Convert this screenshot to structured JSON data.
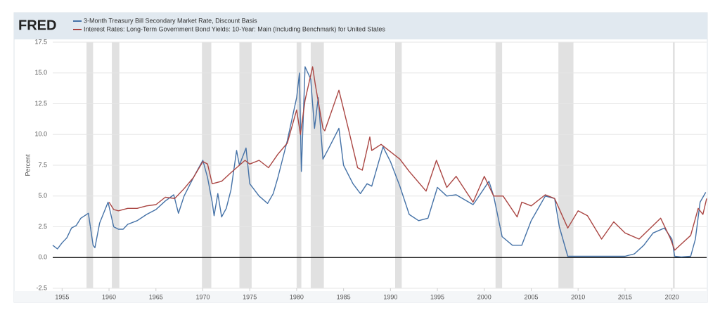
{
  "logo_text": "FRED",
  "chart_data": {
    "type": "line",
    "y_label": "Percent",
    "xlim": [
      1954,
      2023.7
    ],
    "xticks": [
      1955,
      1960,
      1965,
      1970,
      1975,
      1980,
      1985,
      1990,
      1995,
      2000,
      2005,
      2010,
      2015,
      2020
    ],
    "ylim": [
      -2.5,
      17.5
    ],
    "yticks": [
      -2.5,
      {
        "value": 0,
        "label": "0.0"
      },
      2.5,
      {
        "value": 5,
        "label": "5.0"
      },
      7.5,
      {
        "value": 10,
        "label": "10.0"
      },
      12.5,
      {
        "value": 15,
        "label": "15.0"
      },
      17.5
    ],
    "grid": true,
    "recession_color": "#e1e1e1",
    "recessions": [
      [
        1957.6,
        1958.3
      ],
      [
        1960.3,
        1961.1
      ],
      [
        1969.9,
        1970.9
      ],
      [
        1973.9,
        1975.2
      ],
      [
        1980.0,
        1980.5
      ],
      [
        1981.5,
        1982.9
      ],
      [
        1990.5,
        1991.2
      ],
      [
        2001.2,
        2001.9
      ],
      [
        2007.9,
        2009.5
      ],
      [
        2020.1,
        2020.3
      ]
    ],
    "series": [
      {
        "name": "3-Month Treasury Bill Secondary Market Rate, Discount Basis",
        "color": "#4572a7",
        "x": [
          1954.0,
          1954.5,
          1955.0,
          1955.5,
          1956.0,
          1956.5,
          1957.0,
          1957.8,
          1958.3,
          1958.5,
          1959.0,
          1959.9,
          1960.5,
          1961.0,
          1961.5,
          1962,
          1963,
          1964,
          1965,
          1966,
          1966.9,
          1967.4,
          1968,
          1969,
          1970.0,
          1970.5,
          1971.0,
          1971.2,
          1971.6,
          1972.0,
          1972.5,
          1973.0,
          1973.6,
          1973.9,
          1974.6,
          1975.0,
          1976.0,
          1976.9,
          1977.5,
          1978,
          1979,
          1980.0,
          1980.3,
          1980.5,
          1980.9,
          1981.5,
          1981.9,
          1982.3,
          1982.8,
          1983.5,
          1984.5,
          1985,
          1986,
          1986.8,
          1987.5,
          1988,
          1989.2,
          1990,
          1991,
          1992,
          1993,
          1994,
          1995,
          1996,
          1997,
          1998.8,
          1999,
          2000.5,
          2001.0,
          2001.9,
          2003,
          2004,
          2005,
          2006.5,
          2007.5,
          2008.0,
          2008.9,
          2010,
          2015,
          2016,
          2017,
          2018,
          2019.2,
          2020.0,
          2020.3,
          2021,
          2022.0,
          2022.5,
          2023,
          2023.6
        ],
        "values": [
          1.0,
          0.7,
          1.2,
          1.6,
          2.4,
          2.6,
          3.2,
          3.6,
          1.0,
          0.8,
          2.8,
          4.5,
          2.5,
          2.3,
          2.3,
          2.7,
          3.0,
          3.5,
          3.9,
          4.6,
          5.1,
          3.6,
          5.0,
          6.5,
          7.9,
          6.5,
          4.5,
          3.4,
          5.2,
          3.3,
          4.0,
          5.5,
          8.7,
          7.5,
          8.9,
          6.0,
          5.0,
          4.4,
          5.2,
          6.5,
          9.5,
          13.0,
          15.0,
          7.0,
          15.5,
          14.5,
          10.5,
          13.0,
          8.0,
          9.0,
          10.5,
          7.5,
          6.0,
          5.2,
          6.0,
          5.8,
          9.0,
          7.8,
          5.8,
          3.5,
          3.0,
          3.2,
          5.7,
          5.0,
          5.1,
          4.3,
          4.5,
          6.2,
          5.0,
          1.7,
          1.0,
          1.0,
          3.0,
          5.0,
          4.8,
          2.5,
          0.1,
          0.1,
          0.1,
          0.3,
          1.0,
          2.0,
          2.4,
          1.5,
          0.1,
          0.05,
          0.1,
          1.5,
          4.5,
          5.3
        ]
      },
      {
        "name": "Interest Rates: Long-Term Government Bond Yields: 10-Year: Main (Including Benchmark) for United States",
        "color": "#aa4643",
        "x": [
          1960.0,
          1960.5,
          1961,
          1962,
          1963,
          1964,
          1965,
          1966,
          1967,
          1968,
          1969,
          1970.0,
          1970.5,
          1971,
          1972,
          1973,
          1974.5,
          1975,
          1976,
          1977,
          1978,
          1979,
          1980.0,
          1980.4,
          1980.9,
          1981.7,
          1982,
          1982.8,
          1983,
          1984.5,
          1985.5,
          1986.5,
          1987,
          1987.8,
          1988,
          1989,
          1990,
          1991,
          1992,
          1993.8,
          1994.9,
          1996,
          1997,
          1998.8,
          2000.0,
          2001,
          2002,
          2003.5,
          2004,
          2005,
          2006.5,
          2007.5,
          2008.9,
          2010,
          2011,
          2012.5,
          2013.8,
          2015,
          2016.5,
          2018.8,
          2019.8,
          2020.3,
          2021,
          2022,
          2022.8,
          2023.3,
          2023.7
        ],
        "values": [
          4.5,
          3.9,
          3.8,
          4.0,
          4.0,
          4.2,
          4.3,
          4.9,
          4.8,
          5.6,
          6.5,
          7.8,
          7.6,
          6.0,
          6.2,
          6.9,
          7.9,
          7.6,
          7.9,
          7.3,
          8.4,
          9.3,
          12.0,
          10.0,
          12.8,
          15.5,
          14.0,
          10.5,
          10.3,
          13.6,
          10.5,
          7.3,
          7.1,
          9.8,
          8.7,
          9.2,
          8.6,
          8.0,
          7.0,
          5.4,
          7.9,
          5.7,
          6.6,
          4.5,
          6.6,
          5.0,
          5.0,
          3.3,
          4.5,
          4.2,
          5.1,
          4.8,
          2.4,
          3.8,
          3.4,
          1.5,
          2.9,
          2.0,
          1.5,
          3.2,
          1.6,
          0.6,
          1.1,
          1.8,
          4.0,
          3.5,
          4.8
        ]
      }
    ]
  }
}
